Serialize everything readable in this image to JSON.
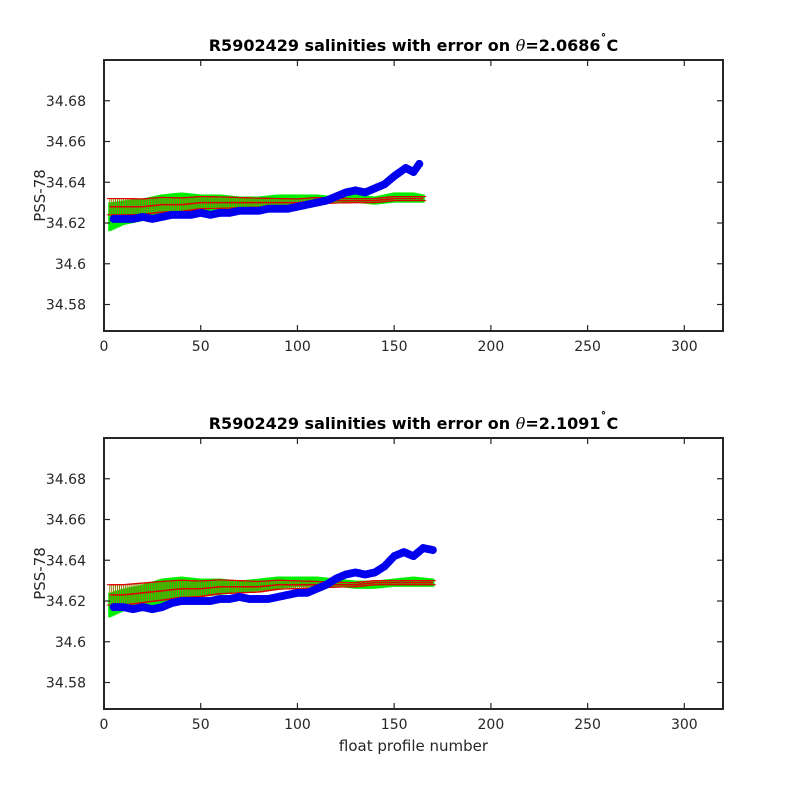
{
  "chart_data": [
    {
      "type": "scatter",
      "title": "R5902429 salinities with error on θ=2.0686˚C",
      "title_parts": {
        "prefix": "R5902429 salinities with error on ",
        "theta": "θ",
        "value": "=2.0686",
        "degree": "˚",
        "unit": "C"
      },
      "xlabel": "",
      "ylabel": "PSS-78",
      "xlim": [
        0,
        320
      ],
      "ylim": [
        34.567,
        34.7
      ],
      "xticks": [
        0,
        50,
        100,
        150,
        200,
        250,
        300
      ],
      "yticks": [
        34.58,
        34.6,
        34.62,
        34.64,
        34.66,
        34.68
      ],
      "ytick_labels": [
        "34.58",
        "34.6",
        "34.62",
        "34.64",
        "34.66",
        "34.68"
      ],
      "grid": false,
      "colors": {
        "band": "#00ee00",
        "errorbar": "#8a7a00",
        "mapped": "#dd0000",
        "float": "#0000ee"
      },
      "band_knots": {
        "x": [
          3,
          10,
          20,
          30,
          40,
          50,
          60,
          70,
          80,
          90,
          100,
          110,
          120,
          130,
          140,
          150,
          160,
          165
        ],
        "lower": [
          34.616,
          34.619,
          34.621,
          34.622,
          34.624,
          34.625,
          34.626,
          34.627,
          34.628,
          34.628,
          34.629,
          34.63,
          34.63,
          34.63,
          34.629,
          34.63,
          34.63,
          34.63
        ],
        "upper": [
          34.63,
          34.631,
          34.632,
          34.634,
          34.635,
          34.634,
          34.634,
          34.633,
          34.633,
          34.634,
          34.634,
          34.634,
          34.633,
          34.634,
          34.633,
          34.635,
          34.635,
          34.634
        ]
      },
      "mapped_knots": {
        "x": [
          3,
          10,
          20,
          30,
          40,
          50,
          60,
          70,
          80,
          90,
          100,
          110,
          120,
          130,
          140,
          150,
          160,
          165
        ],
        "values": [
          34.628,
          34.628,
          34.628,
          34.629,
          34.629,
          34.63,
          34.63,
          34.63,
          34.63,
          34.63,
          34.63,
          34.631,
          34.631,
          34.631,
          34.631,
          34.632,
          34.632,
          34.632
        ],
        "err": [
          0.004,
          0.004,
          0.0038,
          0.0036,
          0.0033,
          0.003,
          0.0028,
          0.0025,
          0.0022,
          0.002,
          0.0018,
          0.0015,
          0.0012,
          0.001,
          0.001,
          0.001,
          0.001,
          0.001
        ]
      },
      "float_points": {
        "x": [
          5,
          10,
          15,
          20,
          25,
          30,
          35,
          40,
          45,
          50,
          55,
          60,
          65,
          70,
          75,
          80,
          85,
          90,
          95,
          100,
          105,
          110,
          115,
          120,
          125,
          130,
          135,
          140,
          145,
          150,
          153,
          156,
          160,
          163
        ],
        "y": [
          34.622,
          34.622,
          34.622,
          34.623,
          34.622,
          34.623,
          34.624,
          34.624,
          34.624,
          34.625,
          34.624,
          34.625,
          34.625,
          34.626,
          34.626,
          34.626,
          34.627,
          34.627,
          34.627,
          34.628,
          34.629,
          34.63,
          34.631,
          34.633,
          34.635,
          34.636,
          34.635,
          34.637,
          34.639,
          34.643,
          34.645,
          34.647,
          34.645,
          34.649
        ]
      }
    },
    {
      "type": "scatter",
      "title": "R5902429 salinities with error on θ=2.1091˚C",
      "title_parts": {
        "prefix": "R5902429 salinities with error on ",
        "theta": "θ",
        "value": "=2.1091",
        "degree": "˚",
        "unit": "C"
      },
      "xlabel": "float profile number",
      "ylabel": "PSS-78",
      "xlim": [
        0,
        320
      ],
      "ylim": [
        34.567,
        34.7
      ],
      "xticks": [
        0,
        50,
        100,
        150,
        200,
        250,
        300
      ],
      "yticks": [
        34.58,
        34.6,
        34.62,
        34.64,
        34.66,
        34.68
      ],
      "ytick_labels": [
        "34.58",
        "34.6",
        "34.62",
        "34.64",
        "34.66",
        "34.68"
      ],
      "grid": false,
      "colors": {
        "band": "#00ee00",
        "errorbar": "#8a7a00",
        "mapped": "#dd0000",
        "float": "#0000ee"
      },
      "band_knots": {
        "x": [
          3,
          10,
          20,
          30,
          40,
          50,
          60,
          70,
          80,
          90,
          100,
          110,
          120,
          130,
          140,
          150,
          160,
          170
        ],
        "lower": [
          34.612,
          34.615,
          34.617,
          34.619,
          34.621,
          34.622,
          34.623,
          34.624,
          34.625,
          34.626,
          34.627,
          34.627,
          34.627,
          34.626,
          34.626,
          34.627,
          34.627,
          34.627
        ],
        "upper": [
          34.624,
          34.626,
          34.628,
          34.631,
          34.632,
          34.631,
          34.631,
          34.63,
          34.631,
          34.632,
          34.632,
          34.632,
          34.631,
          34.63,
          34.63,
          34.631,
          34.632,
          34.631
        ]
      },
      "mapped_knots": {
        "x": [
          3,
          10,
          20,
          30,
          40,
          50,
          60,
          70,
          80,
          90,
          100,
          110,
          120,
          130,
          140,
          150,
          160,
          170
        ],
        "values": [
          34.623,
          34.623,
          34.624,
          34.625,
          34.626,
          34.626,
          34.627,
          34.627,
          34.627,
          34.628,
          34.628,
          34.628,
          34.628,
          34.628,
          34.629,
          34.629,
          34.629,
          34.629
        ],
        "err": [
          0.005,
          0.005,
          0.0048,
          0.0046,
          0.0042,
          0.0038,
          0.0034,
          0.003,
          0.0026,
          0.0022,
          0.0019,
          0.0016,
          0.0012,
          0.001,
          0.001,
          0.001,
          0.001,
          0.001
        ]
      },
      "float_points": {
        "x": [
          5,
          10,
          15,
          20,
          25,
          30,
          35,
          40,
          45,
          50,
          55,
          60,
          65,
          70,
          75,
          80,
          85,
          90,
          95,
          100,
          105,
          110,
          115,
          120,
          125,
          130,
          135,
          140,
          145,
          150,
          155,
          160,
          165,
          170
        ],
        "y": [
          34.617,
          34.617,
          34.616,
          34.617,
          34.616,
          34.617,
          34.619,
          34.62,
          34.62,
          34.62,
          34.62,
          34.621,
          34.621,
          34.622,
          34.621,
          34.621,
          34.621,
          34.622,
          34.623,
          34.624,
          34.624,
          34.626,
          34.628,
          34.631,
          34.633,
          34.634,
          34.633,
          34.634,
          34.637,
          34.642,
          34.644,
          34.642,
          34.646,
          34.645
        ]
      }
    }
  ]
}
